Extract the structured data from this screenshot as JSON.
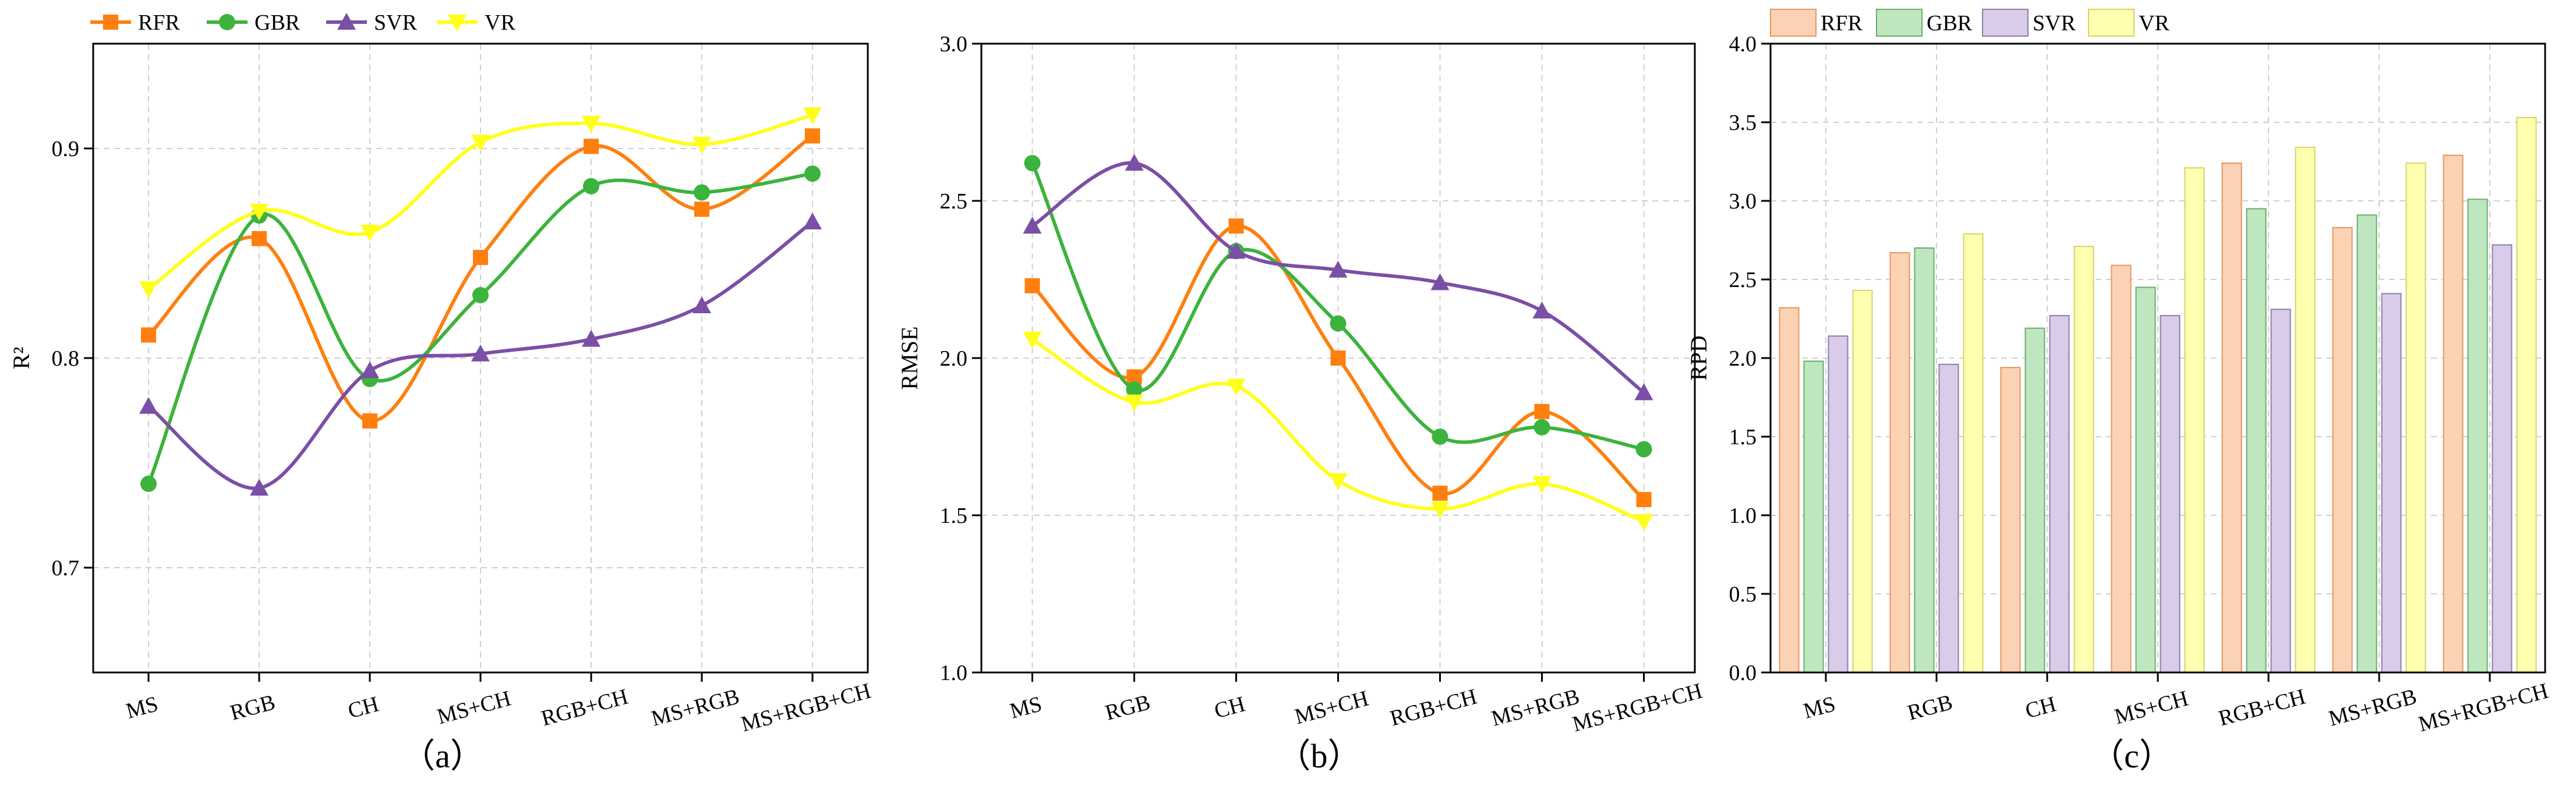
{
  "chart_data": [
    {
      "type": "line",
      "panel_label": "（a）",
      "ylabel": "R²",
      "ylim": [
        0.65,
        0.95
      ],
      "yticks": [
        "0.7",
        "0.8",
        "0.9"
      ],
      "ytick_values": [
        0.7,
        0.8,
        0.9
      ],
      "grid": true,
      "legend_position": "top-left, outside",
      "categories": [
        "MS",
        "RGB",
        "CH",
        "MS+CH",
        "RGB+CH",
        "MS+RGB",
        "MS+RGB+CH"
      ],
      "series": [
        {
          "name": "RFR",
          "marker": "square",
          "color": "#ff7f0e",
          "values": [
            0.811,
            0.857,
            0.77,
            0.848,
            0.901,
            0.871,
            0.906
          ]
        },
        {
          "name": "GBR",
          "marker": "circle",
          "color": "#3cb33c",
          "values": [
            0.74,
            0.868,
            0.79,
            0.83,
            0.882,
            0.879,
            0.888
          ]
        },
        {
          "name": "SVR",
          "marker": "triangle-up",
          "color": "#7b4fa6",
          "values": [
            0.777,
            0.738,
            0.794,
            0.802,
            0.809,
            0.825,
            0.865
          ]
        },
        {
          "name": "VR",
          "marker": "triangle-down",
          "color": "#ffff1a",
          "values": [
            0.833,
            0.87,
            0.86,
            0.903,
            0.912,
            0.902,
            0.916
          ]
        }
      ]
    },
    {
      "type": "line",
      "panel_label": "（b）",
      "ylabel": "RMSE",
      "ylim": [
        1.0,
        3.0
      ],
      "yticks": [
        "1.0",
        "1.5",
        "2.0",
        "2.5",
        "3.0"
      ],
      "ytick_values": [
        1.0,
        1.5,
        2.0,
        2.5,
        3.0
      ],
      "grid": true,
      "categories": [
        "MS",
        "RGB",
        "CH",
        "MS+CH",
        "RGB+CH",
        "MS+RGB",
        "MS+RGB+CH"
      ],
      "series": [
        {
          "name": "RFR",
          "marker": "square",
          "color": "#ff7f0e",
          "values": [
            2.23,
            1.94,
            2.42,
            2.0,
            1.57,
            1.83,
            1.55
          ]
        },
        {
          "name": "GBR",
          "marker": "circle",
          "color": "#3cb33c",
          "values": [
            2.62,
            1.9,
            2.34,
            2.11,
            1.75,
            1.78,
            1.71
          ]
        },
        {
          "name": "SVR",
          "marker": "triangle-up",
          "color": "#7b4fa6",
          "values": [
            2.42,
            2.62,
            2.34,
            2.28,
            2.24,
            2.15,
            1.89
          ]
        },
        {
          "name": "VR",
          "marker": "triangle-down",
          "color": "#ffff1a",
          "values": [
            2.06,
            1.86,
            1.91,
            1.61,
            1.52,
            1.6,
            1.48
          ]
        }
      ]
    },
    {
      "type": "bar",
      "panel_label": "（c）",
      "ylabel": "RPD",
      "ylim": [
        0.0,
        4.0
      ],
      "yticks": [
        "0.0",
        "0.5",
        "1.0",
        "1.5",
        "2.0",
        "2.5",
        "3.0",
        "3.5",
        "4.0"
      ],
      "ytick_values": [
        0.0,
        0.5,
        1.0,
        1.5,
        2.0,
        2.5,
        3.0,
        3.5,
        4.0
      ],
      "grid": true,
      "legend_position": "top, outside",
      "categories": [
        "MS",
        "RGB",
        "CH",
        "MS+CH",
        "RGB+CH",
        "MS+RGB",
        "MS+RGB+CH"
      ],
      "series": [
        {
          "name": "RFR",
          "color": "#fcd2b4",
          "stroke": "#e5955f",
          "values": [
            2.32,
            2.67,
            1.94,
            2.59,
            3.24,
            2.83,
            3.29
          ]
        },
        {
          "name": "GBR",
          "color": "#bfe7bf",
          "stroke": "#68ad68",
          "values": [
            1.98,
            2.7,
            2.19,
            2.45,
            2.95,
            2.91,
            3.01
          ]
        },
        {
          "name": "SVR",
          "color": "#d8cce8",
          "stroke": "#8f7cab",
          "values": [
            2.14,
            1.96,
            2.27,
            2.27,
            2.31,
            2.41,
            2.72
          ]
        },
        {
          "name": "VR",
          "color": "#ffffb0",
          "stroke": "#d3d36a",
          "values": [
            2.43,
            2.79,
            2.71,
            3.21,
            3.34,
            3.24,
            3.53
          ]
        }
      ]
    }
  ]
}
